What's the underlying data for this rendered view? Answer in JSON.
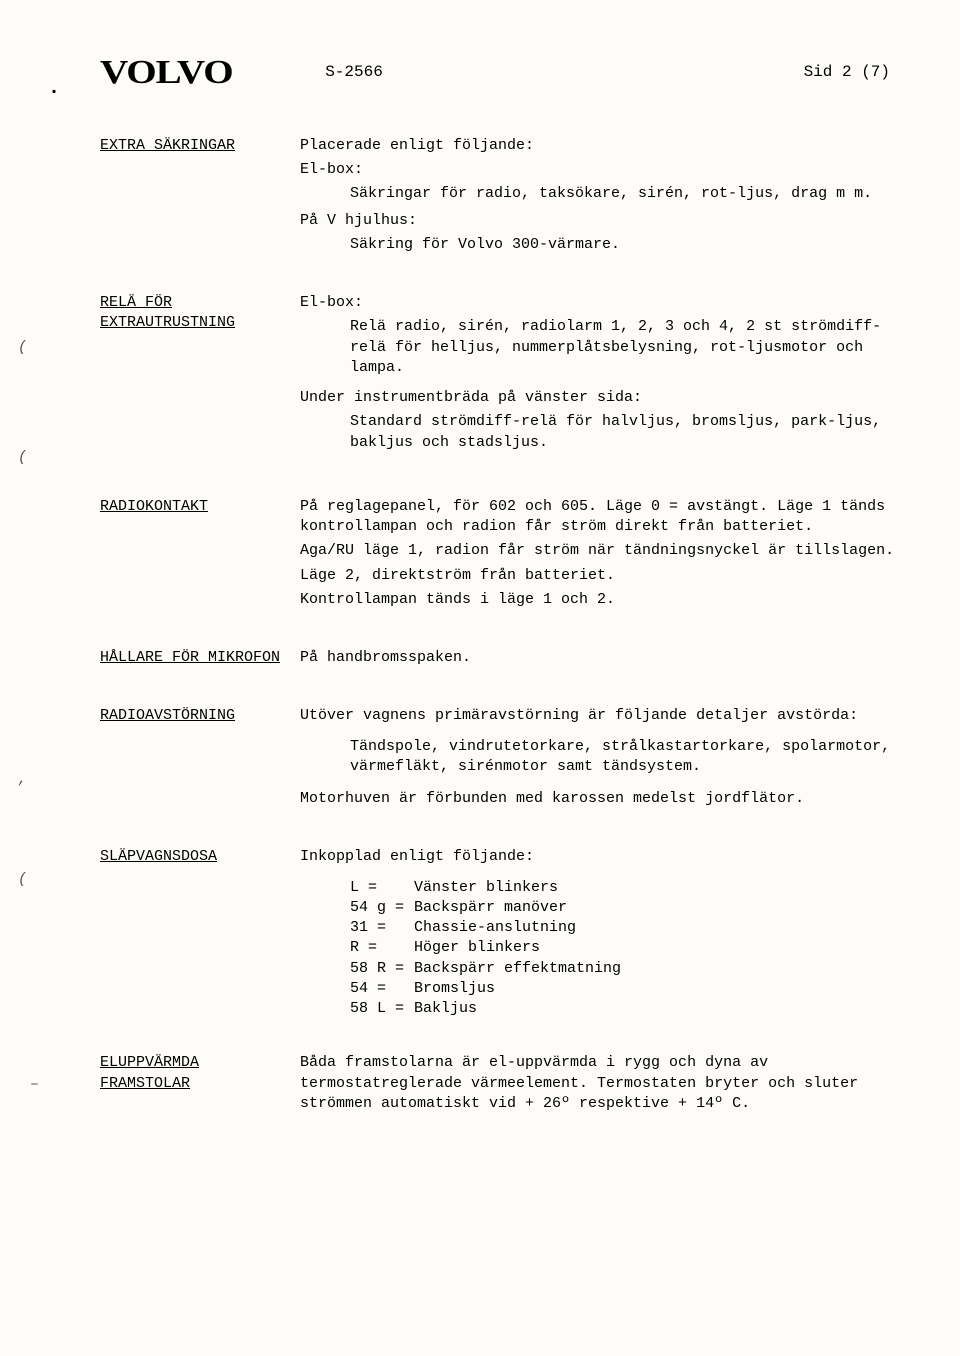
{
  "header": {
    "logo": "VOLVO",
    "doc_id": "S-2566",
    "page": "Sid 2 (7)"
  },
  "sections": {
    "extra_sakringar": {
      "label": "EXTRA SÄKRINGAR",
      "l1": "Placerade enligt följande:",
      "l2": "El-box:",
      "l3": "Säkringar för radio, taksökare, sirén, rot-ljus, drag m m.",
      "l4": "På V hjulhus:",
      "l5": "Säkring för Volvo 300-värmare."
    },
    "rela_for": {
      "label1": "RELÄ FÖR",
      "label2": "EXTRAUTRUSTNING",
      "l1": "El-box:",
      "l2": "Relä radio, sirén, radiolarm 1, 2, 3 och 4, 2 st strömdiff-relä för helljus, nummerplåts­belysning, rot-ljusmotor och lampa.",
      "l3": "Under instrumentbräda på vänster sida:",
      "l4": "Standard strömdiff-relä för halvljus, bromsljus, park-ljus, bakljus och stadsljus."
    },
    "radiokontakt": {
      "label": "RADIOKONTAKT",
      "l1": "På reglagepanel, för 602 och 605. Läge 0 = avstängt. Läge 1 tänds kontrollampan och radion får ström direkt från batteriet.",
      "l2": "Aga/RU läge 1, radion får ström när tändningsnyckel är tillslagen.",
      "l3": "Läge 2, direktström från batteriet.",
      "l4": "Kontrollampan tänds i läge 1 och 2."
    },
    "hallare": {
      "label": "HÅLLARE FÖR MIKROFON",
      "l1": "På handbromsspaken."
    },
    "radioavstorning": {
      "label": "RADIOAVSTÖRNING",
      "l1": "Utöver vagnens primäravstörning är följande detaljer avstörda:",
      "l2": "Tändspole, vindrutetorkare, strålkastartorkare, spolarmotor, värmefläkt, sirénmotor samt tänd­system.",
      "l3": "Motorhuven är förbunden med karossen medelst jordflätor."
    },
    "slapvagnsdosa": {
      "label": "SLÄPVAGNSDOSA",
      "intro": "Inkopplad enligt följande:",
      "pins": [
        {
          "k": "L =",
          "d": "Vänster blinkers"
        },
        {
          "k": "54 g =",
          "d": "Backspärr manöver"
        },
        {
          "k": "31 =",
          "d": "Chassie-anslutning"
        },
        {
          "k": "R =",
          "d": "Höger blinkers"
        },
        {
          "k": "58 R =",
          "d": "Backspärr effektmatning"
        },
        {
          "k": "54 =",
          "d": "Bromsljus"
        },
        {
          "k": "58 L =",
          "d": "Bakljus"
        }
      ]
    },
    "eluppvarmda": {
      "label1": "ELUPPVÄRMDA",
      "label2": "FRAMSTOLAR",
      "l1": "Båda framstolarna är el-uppvärmda i rygg och dyna av termostatreglerade värmeelement. Termostaten bryter och sluter strömmen automatiskt vid + 26º respektive + 14º C."
    }
  }
}
